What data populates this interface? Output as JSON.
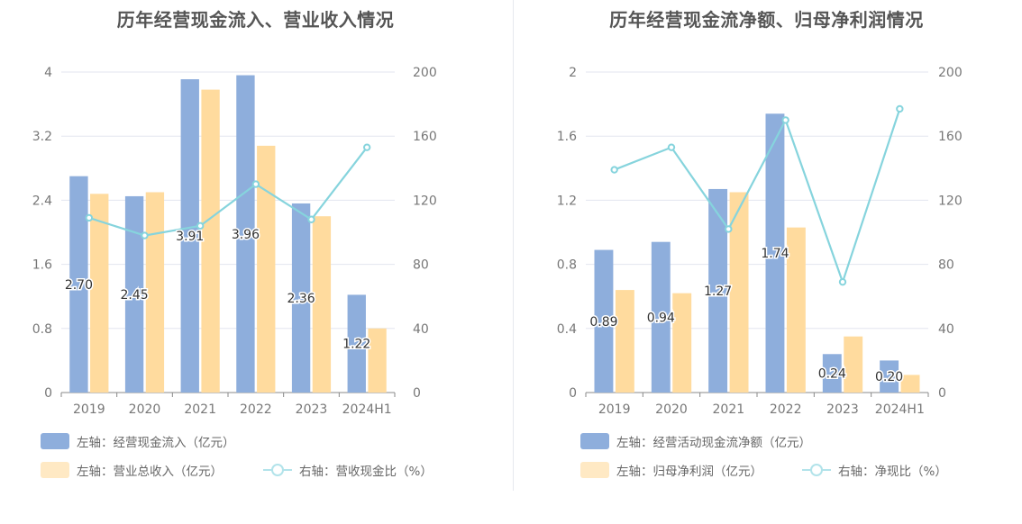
{
  "chart_data": [
    {
      "type": "bar",
      "title": "历年经营现金流入、营业收入情况",
      "categories": [
        "2019",
        "2020",
        "2021",
        "2022",
        "2023",
        "2024H1"
      ],
      "left_axis": {
        "ylim": [
          0,
          4
        ],
        "ticks": [
          "0",
          "0.8",
          "1.6",
          "2.4",
          "3.2",
          "4"
        ]
      },
      "right_axis": {
        "ylim": [
          0,
          200
        ],
        "ticks": [
          "0",
          "40",
          "80",
          "120",
          "160",
          "200"
        ]
      },
      "grid": true,
      "legend_position": "bottom-left",
      "series": [
        {
          "name": "左轴：经营现金流入（亿元）",
          "kind": "bar",
          "axis": "left",
          "color": "#8eaedc",
          "values": [
            2.7,
            2.45,
            3.91,
            3.96,
            2.36,
            1.22
          ],
          "labels": [
            "2.70",
            "2.45",
            "3.91",
            "3.96",
            "2.36",
            "1.22"
          ]
        },
        {
          "name": "左轴：营业总收入（亿元）",
          "kind": "bar",
          "axis": "left",
          "color": "#ffdb9e",
          "values": [
            2.48,
            2.5,
            3.78,
            3.08,
            2.2,
            0.8
          ]
        },
        {
          "name": "右轴：营收现金比（%）",
          "kind": "line",
          "axis": "right",
          "color": "#86d4dd",
          "values": [
            109,
            98,
            104,
            130,
            108,
            153
          ]
        }
      ]
    },
    {
      "type": "bar",
      "title": "历年经营现金流净额、归母净利润情况",
      "categories": [
        "2019",
        "2020",
        "2021",
        "2022",
        "2023",
        "2024H1"
      ],
      "left_axis": {
        "ylim": [
          0,
          2
        ],
        "ticks": [
          "0",
          "0.4",
          "0.8",
          "1.2",
          "1.6",
          "2"
        ]
      },
      "right_axis": {
        "ylim": [
          0,
          200
        ],
        "ticks": [
          "0",
          "40",
          "80",
          "120",
          "160",
          "200"
        ]
      },
      "grid": true,
      "legend_position": "bottom-left",
      "series": [
        {
          "name": "左轴：经营活动现金流净额（亿元）",
          "kind": "bar",
          "axis": "left",
          "color": "#8eaedc",
          "values": [
            0.89,
            0.94,
            1.27,
            1.74,
            0.24,
            0.2
          ],
          "labels": [
            "0.89",
            "0.94",
            "1.27",
            "1.74",
            "0.24",
            "0.20"
          ]
        },
        {
          "name": "左轴：归母净利润（亿元）",
          "kind": "bar",
          "axis": "left",
          "color": "#ffdb9e",
          "values": [
            0.64,
            0.62,
            1.25,
            1.03,
            0.35,
            0.11
          ]
        },
        {
          "name": "右轴：净现比（%）",
          "kind": "line",
          "axis": "right",
          "color": "#86d4dd",
          "values": [
            139,
            153,
            102,
            170,
            69,
            177
          ]
        }
      ]
    }
  ]
}
